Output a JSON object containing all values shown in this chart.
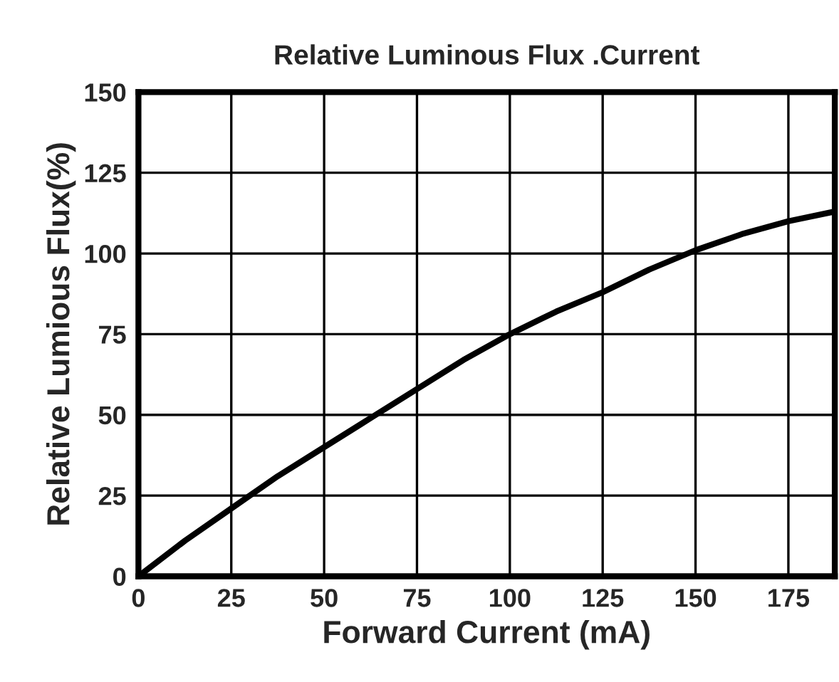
{
  "chart_data": {
    "type": "line",
    "title": "Relative Luminous Flux .Current",
    "xlabel": "Forward Current (mA)",
    "ylabel": "Relative Lumious Flux(%)",
    "x": [
      0,
      12.5,
      25,
      37.5,
      50,
      62.5,
      75,
      87.5,
      100,
      112.5,
      125,
      137.5,
      150,
      162.5,
      175,
      187.5
    ],
    "series": [
      {
        "color": "#000000",
        "values": [
          0,
          11,
          21,
          31,
          40,
          49,
          58,
          67,
          75,
          82,
          88,
          95,
          101,
          106,
          110,
          113
        ]
      }
    ],
    "xlim": [
      0,
      187.5
    ],
    "xticks": [
      0,
      25,
      50,
      75,
      100,
      125,
      150,
      175
    ],
    "ylim": [
      0,
      150
    ],
    "yticks": [
      0,
      25,
      50,
      75,
      100,
      125,
      150
    ],
    "grid": true,
    "line_style": "solid",
    "marker": "none"
  }
}
